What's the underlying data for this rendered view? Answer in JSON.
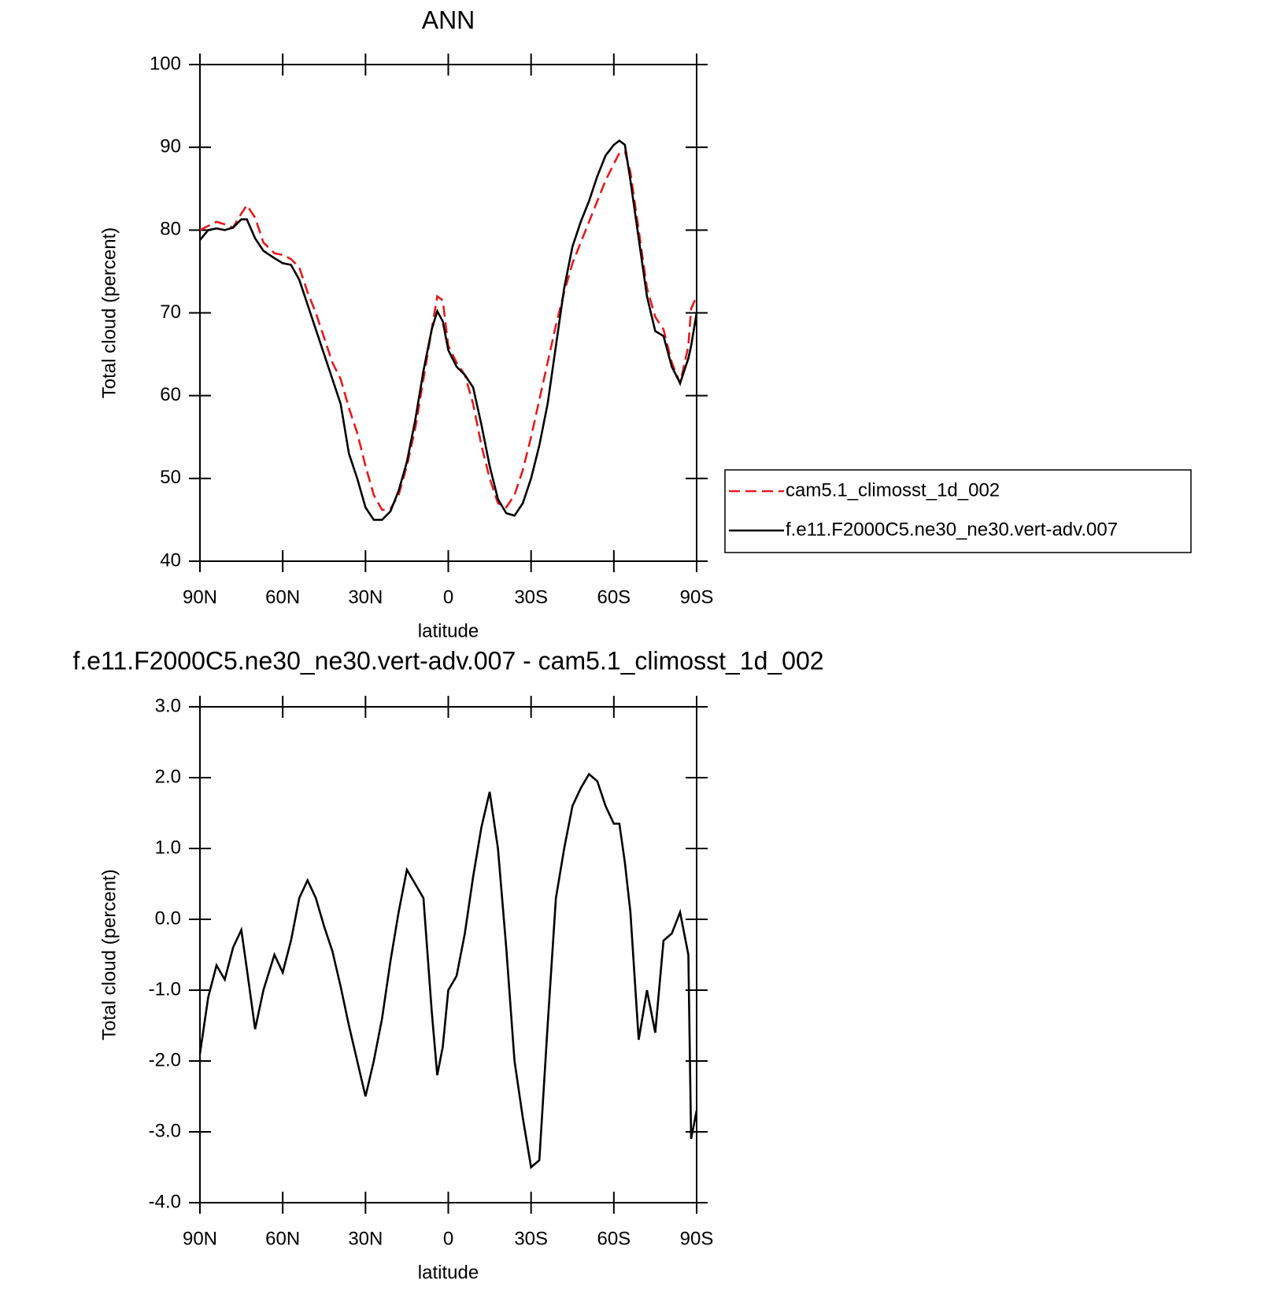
{
  "chart_data": [
    {
      "type": "line",
      "title": "ANN",
      "xlabel": "latitude",
      "ylabel": "Total cloud (percent)",
      "x": [
        90,
        87,
        84,
        81,
        78,
        75,
        73,
        70,
        67,
        63,
        60,
        57,
        54,
        51,
        48,
        45,
        42,
        39,
        36,
        33,
        30,
        27,
        24,
        21,
        18,
        15,
        12,
        9,
        6,
        4,
        2,
        0,
        -3,
        -6,
        -9,
        -12,
        -15,
        -18,
        -21,
        -24,
        -27,
        -30,
        -33,
        -36,
        -39,
        -42,
        -45,
        -48,
        -51,
        -54,
        -57,
        -60,
        -62,
        -64,
        -66,
        -69,
        -72,
        -75,
        -78,
        -81,
        -84,
        -87,
        -88,
        -90
      ],
      "xlim": [
        90,
        -90
      ],
      "xticks": [
        {
          "value": 90,
          "label": "90N"
        },
        {
          "value": 60,
          "label": "60N"
        },
        {
          "value": 30,
          "label": "30N"
        },
        0,
        {
          "value": -30,
          "label": "30S"
        },
        {
          "value": -60,
          "label": "60S"
        },
        {
          "value": -90,
          "label": "90S"
        }
      ],
      "ylim": [
        40,
        100
      ],
      "yticks": [
        40,
        50,
        60,
        70,
        80,
        90,
        100
      ],
      "legend": "outside-right",
      "series": [
        {
          "name": "cam5.1_climosst_1d_002",
          "color": "#e8191c",
          "dashed": true,
          "values": [
            80.0,
            80.5,
            81.0,
            80.7,
            80.3,
            82.0,
            83.0,
            81.5,
            78.5,
            77.2,
            77.0,
            76.5,
            75.5,
            72.5,
            70,
            67,
            64,
            62,
            58.5,
            55.5,
            51.5,
            48,
            46.2,
            46.3,
            48,
            51.5,
            56,
            62,
            68,
            72,
            71.5,
            66,
            64,
            62.5,
            59,
            54,
            50,
            47,
            46.5,
            48,
            51,
            55,
            59.5,
            64,
            68.5,
            72.5,
            76,
            78.5,
            81,
            83.5,
            86,
            88,
            89.3,
            89.5,
            87,
            80,
            73,
            69.5,
            68,
            64,
            61.5,
            66,
            70.5,
            72
          ]
        },
        {
          "name": "f.e11.F2000C5.ne30_ne30.vert-adv.007",
          "color": "#000000",
          "dashed": false,
          "values": [
            78.8,
            80,
            80.2,
            80,
            80.3,
            81.3,
            81.3,
            79,
            77.5,
            76.6,
            76,
            75.8,
            74,
            71,
            68,
            65,
            62,
            59,
            53,
            50,
            46.5,
            45,
            45,
            46,
            48.5,
            52,
            57,
            63,
            68,
            70.2,
            69,
            65.5,
            63.5,
            62.5,
            61,
            56.5,
            51.5,
            47.5,
            45.8,
            45.5,
            47,
            50,
            54,
            59,
            66,
            73,
            78,
            81,
            83.5,
            86.5,
            89,
            90.3,
            90.8,
            90.3,
            86,
            79,
            72,
            67.8,
            67.2,
            63.5,
            61.5,
            64.5,
            66,
            70
          ]
        }
      ]
    },
    {
      "type": "line",
      "title": "f.e11.F2000C5.ne30_ne30.vert-adv.007 - cam5.1_climosst_1d_002",
      "xlabel": "latitude",
      "ylabel": "Total cloud (percent)",
      "x": [
        90,
        87,
        84,
        81,
        78,
        75,
        73,
        70,
        67,
        63,
        60,
        57,
        54,
        51,
        48,
        45,
        42,
        39,
        36,
        33,
        30,
        27,
        24,
        21,
        18,
        15,
        12,
        9,
        6,
        4,
        2,
        0,
        -3,
        -6,
        -9,
        -12,
        -15,
        -18,
        -21,
        -24,
        -27,
        -30,
        -33,
        -36,
        -39,
        -42,
        -45,
        -48,
        -51,
        -54,
        -57,
        -60,
        -62,
        -64,
        -66,
        -69,
        -72,
        -75,
        -78,
        -81,
        -84,
        -87,
        -88,
        -90
      ],
      "xlim": [
        90,
        -90
      ],
      "xticks": [
        {
          "value": 90,
          "label": "90N"
        },
        {
          "value": 60,
          "label": "60N"
        },
        {
          "value": 30,
          "label": "30N"
        },
        0,
        {
          "value": -30,
          "label": "30S"
        },
        {
          "value": -60,
          "label": "60S"
        },
        {
          "value": -90,
          "label": "90S"
        }
      ],
      "ylim": [
        -4,
        3
      ],
      "yticks": [
        {
          "value": -4,
          "label": "-4.0"
        },
        {
          "value": -3,
          "label": "-3.0"
        },
        {
          "value": -2,
          "label": "-2.0"
        },
        {
          "value": -1,
          "label": "-1.0"
        },
        {
          "value": 0,
          "label": "0.0"
        },
        {
          "value": 1,
          "label": "1.0"
        },
        {
          "value": 2,
          "label": "2.0"
        },
        {
          "value": 3,
          "label": "3.0"
        }
      ],
      "series": [
        {
          "color": "#000000",
          "dashed": false,
          "values": [
            -1.9,
            -1.1,
            -0.65,
            -0.85,
            -0.4,
            -0.15,
            -0.7,
            -1.55,
            -1.0,
            -0.5,
            -0.75,
            -0.3,
            0.3,
            0.55,
            0.3,
            -0.1,
            -0.45,
            -0.95,
            -1.5,
            -2.0,
            -2.5,
            -2.0,
            -1.4,
            -0.6,
            0.1,
            0.7,
            0.5,
            0.3,
            -1.3,
            -2.2,
            -1.8,
            -1.0,
            -0.8,
            -0.2,
            0.6,
            1.3,
            1.8,
            1.0,
            -0.4,
            -2.0,
            -2.8,
            -3.5,
            -3.4,
            -1.5,
            0.3,
            1.0,
            1.6,
            1.85,
            2.05,
            1.95,
            1.6,
            1.35,
            1.35,
            0.8,
            0.1,
            -1.7,
            -1.0,
            -1.6,
            -0.3,
            -0.2,
            0.1,
            -0.5,
            -3.1,
            -2.7
          ]
        }
      ]
    }
  ]
}
